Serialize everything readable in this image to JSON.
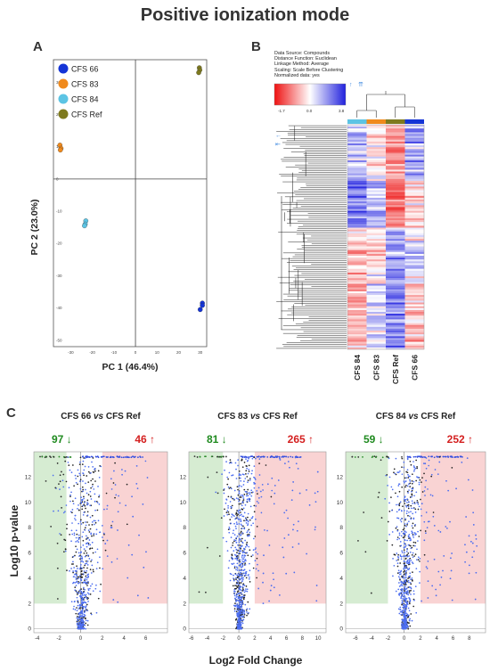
{
  "title": "Positive ionization mode",
  "panels": {
    "a": "A",
    "b": "B",
    "c": "C"
  },
  "colors": {
    "cfs66": "#1434d6",
    "cfs83": "#f08a1c",
    "cfs84": "#5cc4e4",
    "cfsref": "#7e7a1e",
    "down": "#1f8a1f",
    "up": "#d42020",
    "down_zone": "#d6ecd2",
    "up_zone": "#f9d3d3",
    "heat_high": "#2b2bd0",
    "heat_low": "#f02020"
  },
  "heatmap": {
    "info": [
      "Data Source: Compounds",
      "Distance Function: Euclidean",
      "Linkage Method: Average",
      "Scaling: Scale Before Clustering",
      "Normalized data: yes"
    ],
    "scale_min": "-1.7",
    "scale_mid": "0.0",
    "scale_max": "3.8",
    "columns": [
      "CFS 84",
      "CFS 83",
      "CFS Ref",
      "CFS 66"
    ],
    "column_colors": [
      "#5cc4e4",
      "#f08a1c",
      "#7e7a1e",
      "#1434d6"
    ]
  },
  "chart_data": [
    {
      "type": "scatter",
      "panel": "A",
      "xlabel": "PC 1 (46.4%)",
      "ylabel": "PC 2 (23.0%)",
      "xlim": [
        -38,
        33
      ],
      "ylim": [
        -52,
        37
      ],
      "xticks": [
        -30,
        -20,
        -10,
        0,
        10,
        20,
        30
      ],
      "yticks": [
        -50,
        -40,
        -30,
        -20,
        -10,
        0,
        10,
        20,
        30
      ],
      "legend": [
        "CFS 66",
        "CFS 83",
        "CFS 84",
        "CFS Ref"
      ],
      "series": [
        {
          "name": "CFS 66",
          "points": [
            [
              31,
              -38.5
            ],
            [
              31,
              -39.2
            ],
            [
              30,
              -40.5
            ]
          ]
        },
        {
          "name": "CFS 83",
          "points": [
            [
              -35,
              10.5
            ],
            [
              -34.5,
              9.5
            ],
            [
              -34.8,
              9
            ]
          ]
        },
        {
          "name": "CFS 84",
          "points": [
            [
              -23,
              -13
            ],
            [
              -23.3,
              -14
            ],
            [
              -23.6,
              -14.5
            ]
          ]
        },
        {
          "name": "CFS Ref",
          "points": [
            [
              29.6,
              34.5
            ],
            [
              29.8,
              33.8
            ],
            [
              29.3,
              33
            ]
          ]
        }
      ]
    },
    {
      "type": "scatter",
      "title": "CFS 66 vs CFS Ref",
      "xlabel": "Log2 Fold Change",
      "ylabel": "Log10 p-value",
      "xlim": [
        -4.3,
        8
      ],
      "ylim": [
        -0.3,
        14
      ],
      "xticks": [
        -4,
        -2,
        0,
        2,
        4,
        6
      ],
      "yticks": [
        0,
        2,
        4,
        6,
        8,
        10,
        12
      ],
      "down_count": "97",
      "up_count": "46",
      "thresholds": {
        "fc_low": -1.3,
        "fc_high": 2,
        "p": 2
      }
    },
    {
      "type": "scatter",
      "title": "CFS 83 vs CFS Ref",
      "xlabel": "Log2 Fold Change",
      "ylabel": "Log10 p-value",
      "xlim": [
        -6.3,
        11
      ],
      "ylim": [
        -0.3,
        14
      ],
      "xticks": [
        -6,
        -4,
        -2,
        0,
        2,
        4,
        6,
        8,
        10
      ],
      "yticks": [
        0,
        2,
        4,
        6,
        8,
        10,
        12
      ],
      "down_count": "81",
      "up_count": "265",
      "thresholds": {
        "fc_low": -2,
        "fc_high": 2,
        "p": 2
      }
    },
    {
      "type": "scatter",
      "title": "CFS 84 vs CFS Ref",
      "xlabel": "Log2 Fold Change",
      "ylabel": "Log10 p-value",
      "xlim": [
        -7.2,
        10
      ],
      "ylim": [
        -0.3,
        14
      ],
      "xticks": [
        -6,
        -4,
        -2,
        0,
        2,
        4,
        6,
        8
      ],
      "yticks": [
        0,
        2,
        4,
        6,
        8,
        10,
        12
      ],
      "down_count": "59",
      "up_count": "252",
      "thresholds": {
        "fc_low": -2,
        "fc_high": 2,
        "p": 2
      }
    }
  ]
}
